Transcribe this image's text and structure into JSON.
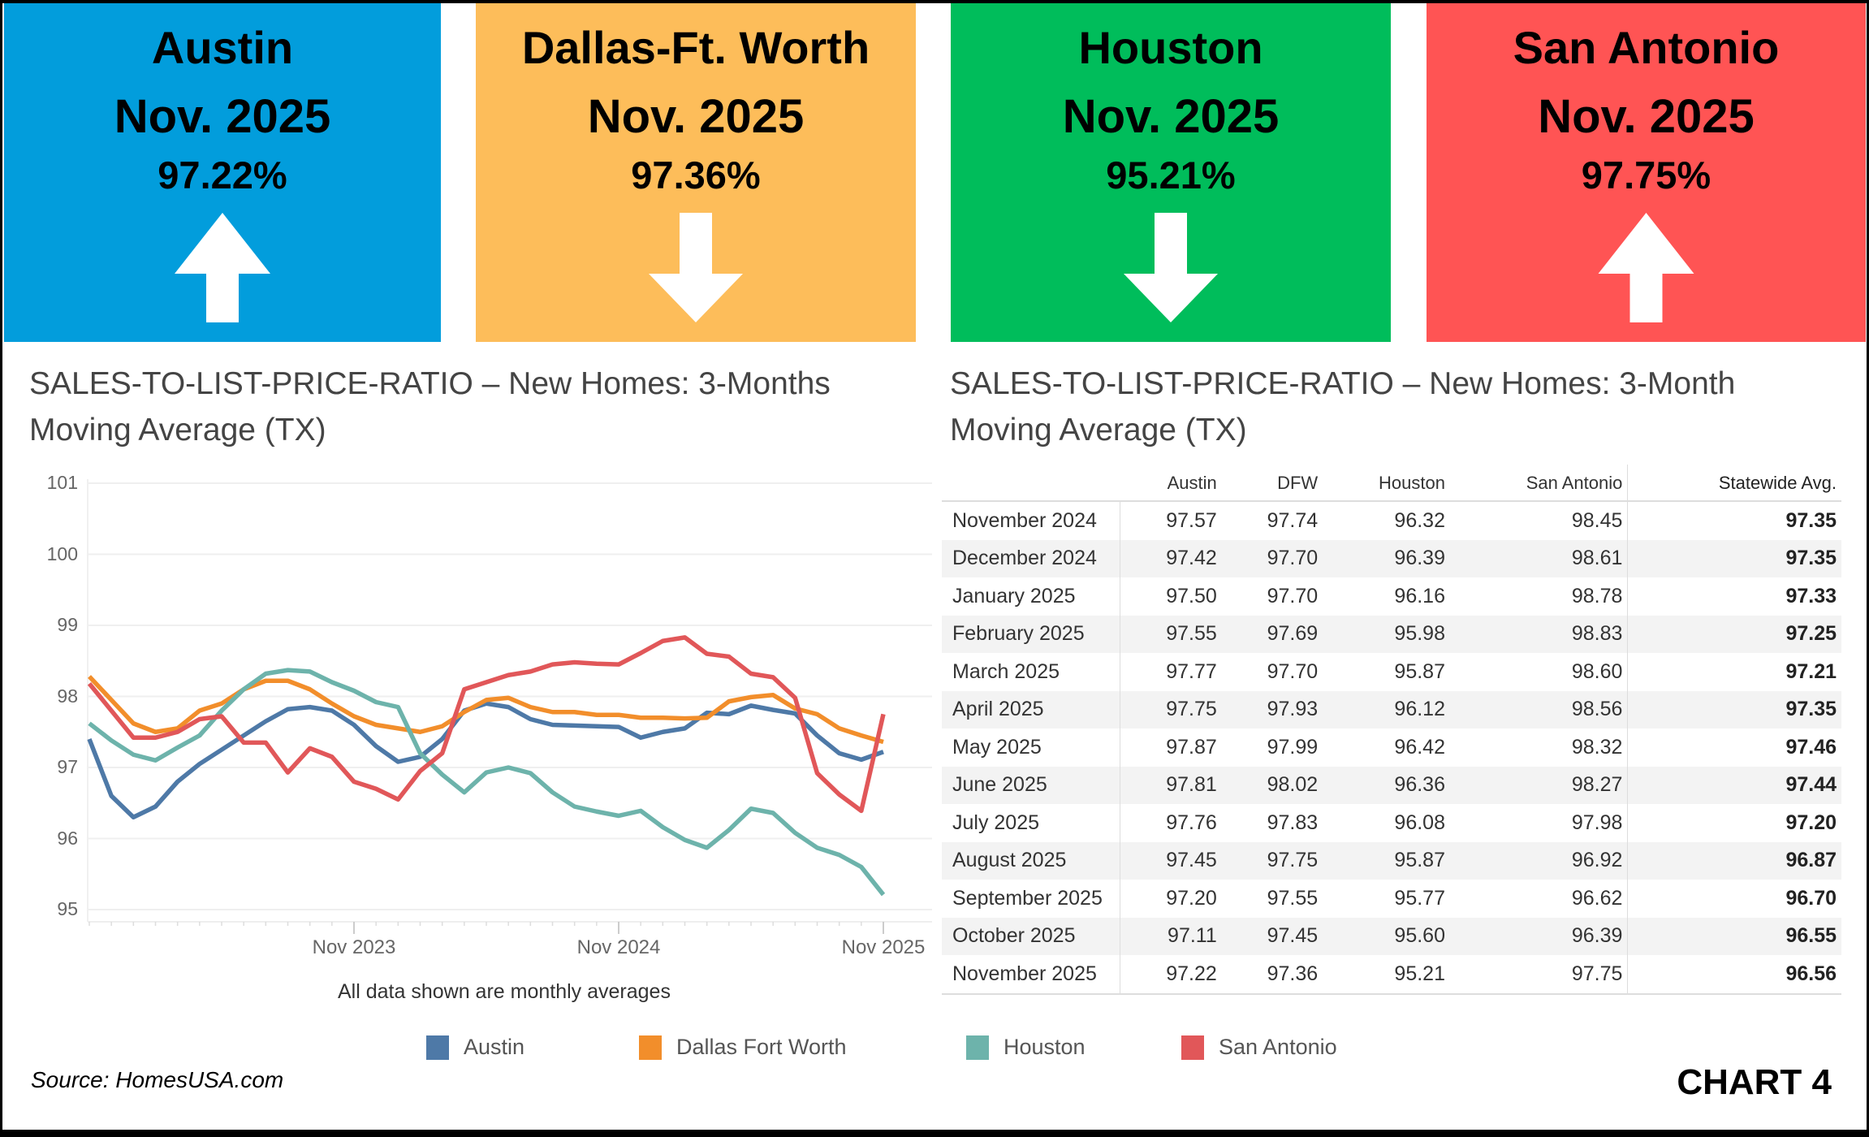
{
  "cards": [
    {
      "city": "Austin",
      "period": "Nov. 2025",
      "value": "97.22%",
      "direction": "up",
      "color": "#029DDC"
    },
    {
      "city": "Dallas-Ft. Worth",
      "period": "Nov. 2025",
      "value": "97.36%",
      "direction": "down",
      "color": "#FDBD5A"
    },
    {
      "city": "Houston",
      "period": "Nov. 2025",
      "value": "95.21%",
      "direction": "down",
      "color": "#00BD5B"
    },
    {
      "city": "San Antonio",
      "period": "Nov. 2025",
      "value": "97.75%",
      "direction": "up",
      "color": "#FF5454"
    }
  ],
  "left_title": "SALES-TO-LIST-PRICE-RATIO – New Homes: 3-Months Moving Average (TX)",
  "right_title": "SALES-TO-LIST-PRICE-RATIO – New Homes:  3-Month Moving Average (TX)",
  "note": "All data shown are monthly averages",
  "source": "Source: HomesUSA.com",
  "chart_label": "CHART 4",
  "chart_data": [
    {
      "type": "line",
      "x_start": "Nov 2022",
      "x_end": "Nov 2025",
      "x_ticks": [
        "Nov 2023",
        "Nov 2024",
        "Nov 2025"
      ],
      "y_ticks": [
        "101",
        "100",
        "99",
        "98",
        "97",
        "96",
        "95"
      ],
      "ylim": [
        95,
        101
      ],
      "grid": true,
      "legend_position": "bottom",
      "series": [
        {
          "name": "Austin",
          "color": "#4E79A7",
          "values": [
            97.4,
            96.6,
            96.3,
            96.45,
            96.8,
            97.05,
            97.25,
            97.45,
            97.65,
            97.82,
            97.85,
            97.8,
            97.6,
            97.3,
            97.08,
            97.15,
            97.4,
            97.8,
            97.9,
            97.85,
            97.68,
            97.6,
            97.59,
            97.58,
            97.57,
            97.42,
            97.5,
            97.55,
            97.77,
            97.75,
            97.87,
            97.81,
            97.76,
            97.45,
            97.2,
            97.11,
            97.22
          ]
        },
        {
          "name": "Dallas Fort Worth",
          "color": "#F28E2B",
          "values": [
            98.28,
            97.95,
            97.62,
            97.5,
            97.55,
            97.8,
            97.9,
            98.1,
            98.22,
            98.22,
            98.1,
            97.9,
            97.72,
            97.6,
            97.55,
            97.5,
            97.58,
            97.78,
            97.95,
            97.98,
            97.85,
            97.78,
            97.78,
            97.74,
            97.74,
            97.7,
            97.7,
            97.69,
            97.7,
            97.93,
            97.99,
            98.02,
            97.83,
            97.75,
            97.55,
            97.45,
            97.36
          ]
        },
        {
          "name": "Houston",
          "color": "#6DB3AB",
          "values": [
            97.62,
            97.38,
            97.18,
            97.1,
            97.28,
            97.45,
            97.8,
            98.1,
            98.32,
            98.37,
            98.35,
            98.2,
            98.08,
            97.92,
            97.85,
            97.2,
            96.9,
            96.65,
            96.93,
            97.0,
            96.92,
            96.65,
            96.45,
            96.38,
            96.32,
            96.39,
            96.16,
            95.98,
            95.87,
            96.12,
            96.42,
            96.36,
            96.08,
            95.87,
            95.77,
            95.6,
            95.21
          ]
        },
        {
          "name": "San Antonio",
          "color": "#E15759",
          "values": [
            98.18,
            97.8,
            97.42,
            97.42,
            97.5,
            97.68,
            97.72,
            97.35,
            97.35,
            96.93,
            97.27,
            97.15,
            96.8,
            96.7,
            96.55,
            96.95,
            97.2,
            98.1,
            98.2,
            98.3,
            98.35,
            98.45,
            98.48,
            98.46,
            98.45,
            98.61,
            98.78,
            98.83,
            98.6,
            98.56,
            98.32,
            98.27,
            97.98,
            96.92,
            96.62,
            96.39,
            97.75
          ]
        }
      ]
    },
    {
      "type": "table",
      "columns": [
        "",
        "Austin",
        "DFW",
        "Houston",
        "San Antonio",
        "Statewide Avg."
      ],
      "rows": [
        [
          "November 2024",
          "97.57",
          "97.74",
          "96.32",
          "98.45",
          "97.35"
        ],
        [
          "December 2024",
          "97.42",
          "97.70",
          "96.39",
          "98.61",
          "97.35"
        ],
        [
          "January 2025",
          "97.50",
          "97.70",
          "96.16",
          "98.78",
          "97.33"
        ],
        [
          "February 2025",
          "97.55",
          "97.69",
          "95.98",
          "98.83",
          "97.25"
        ],
        [
          "March 2025",
          "97.77",
          "97.70",
          "95.87",
          "98.60",
          "97.21"
        ],
        [
          "April 2025",
          "97.75",
          "97.93",
          "96.12",
          "98.56",
          "97.35"
        ],
        [
          "May 2025",
          "97.87",
          "97.99",
          "96.42",
          "98.32",
          "97.46"
        ],
        [
          "June 2025",
          "97.81",
          "98.02",
          "96.36",
          "98.27",
          "97.44"
        ],
        [
          "July 2025",
          "97.76",
          "97.83",
          "96.08",
          "97.98",
          "97.20"
        ],
        [
          "August 2025",
          "97.45",
          "97.75",
          "95.87",
          "96.92",
          "96.87"
        ],
        [
          "September 2025",
          "97.20",
          "97.55",
          "95.77",
          "96.62",
          "96.70"
        ],
        [
          "October 2025",
          "97.11",
          "97.45",
          "95.60",
          "96.39",
          "96.55"
        ],
        [
          "November 2025",
          "97.22",
          "97.36",
          "95.21",
          "97.75",
          "96.56"
        ]
      ]
    }
  ]
}
